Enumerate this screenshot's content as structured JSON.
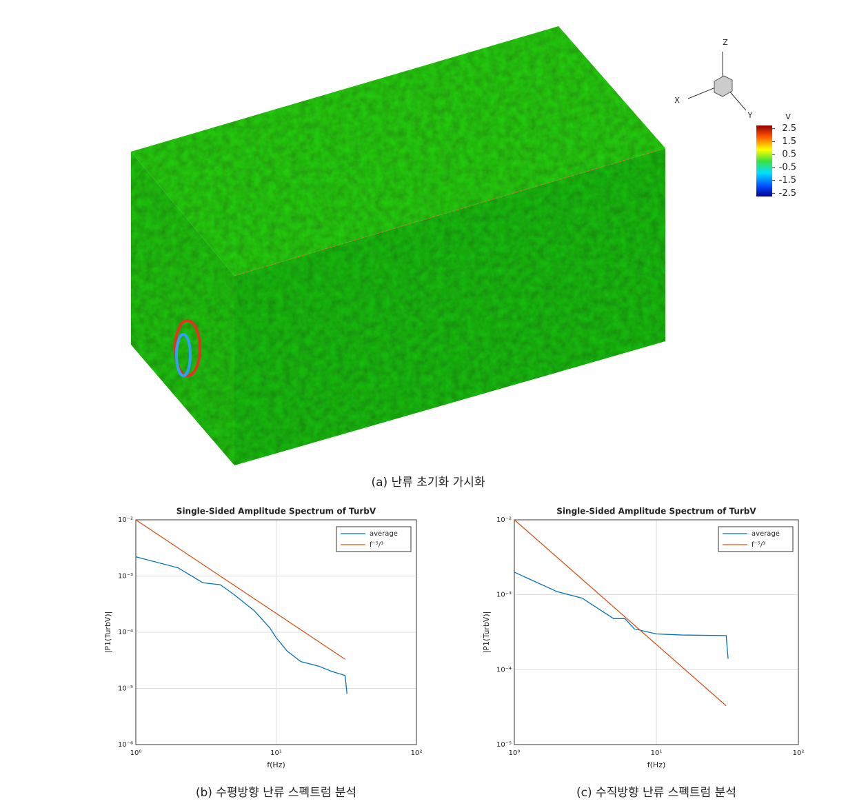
{
  "visualization": {
    "caption": "(a) 난류 초기화 가시화",
    "axis_triad": {
      "x": "X",
      "y": "Y",
      "z": "Z"
    },
    "colorbar": {
      "title": "V",
      "colormap": "jet",
      "clim": [
        -2.75,
        2.75
      ],
      "ticks": [
        2.5,
        1.5,
        0.5,
        -0.5,
        -1.5,
        -2.5
      ]
    }
  },
  "chart_data": [
    {
      "type": "line",
      "title": "Single-Sided Amplitude Spectrum of TurbV",
      "caption": "(b) 수평방향 난류 스펙트럼 분석",
      "xlabel": "f(Hz)",
      "ylabel": "|P1(TurbV)|",
      "xscale": "log",
      "yscale": "log",
      "grid": true,
      "legend": "upper right",
      "xlim": [
        1,
        100
      ],
      "ylim": [
        1e-06,
        0.01
      ],
      "xticks": [
        {
          "value": 1,
          "label": "10⁰"
        },
        {
          "value": 10,
          "label": "10¹"
        },
        {
          "value": 100,
          "label": "10²"
        }
      ],
      "yticks": [
        {
          "value": 1e-06,
          "label": "10⁻⁶"
        },
        {
          "value": 1e-05,
          "label": "10⁻⁵"
        },
        {
          "value": 0.0001,
          "label": "10⁻⁴"
        },
        {
          "value": 0.001,
          "label": "10⁻³"
        },
        {
          "value": 0.01,
          "label": "10⁻²"
        }
      ],
      "series": [
        {
          "name": "average",
          "color": "#0072bd",
          "x": [
            1,
            2,
            3,
            4,
            5,
            7,
            9,
            10,
            12,
            15,
            20,
            25,
            31,
            32
          ],
          "values": [
            0.0022,
            0.0014,
            0.00076,
            0.0007,
            0.00047,
            0.00024,
            0.00012,
            8e-05,
            4.6e-05,
            3e-05,
            2.5e-05,
            2e-05,
            1.7e-05,
            8e-06
          ]
        },
        {
          "name": "f⁻⁵/³",
          "color": "#d95319",
          "x": [
            1,
            31
          ],
          "values": [
            0.01,
            3.3e-05
          ]
        }
      ]
    },
    {
      "type": "line",
      "title": "Single-Sided Amplitude Spectrum of TurbV",
      "caption": "(c) 수직방향 난류 스펙트럼 분석",
      "xlabel": "f(Hz)",
      "ylabel": "|P1(TurbV)|",
      "xscale": "log",
      "yscale": "log",
      "grid": true,
      "legend": "upper right",
      "xlim": [
        1,
        100
      ],
      "ylim": [
        1e-05,
        0.01
      ],
      "xticks": [
        {
          "value": 1,
          "label": "10⁰"
        },
        {
          "value": 10,
          "label": "10¹"
        },
        {
          "value": 100,
          "label": "10²"
        }
      ],
      "yticks": [
        {
          "value": 1e-05,
          "label": "10⁻⁵"
        },
        {
          "value": 0.0001,
          "label": "10⁻⁴"
        },
        {
          "value": 0.001,
          "label": "10⁻³"
        },
        {
          "value": 0.01,
          "label": "10⁻²"
        }
      ],
      "series": [
        {
          "name": "average",
          "color": "#0072bd",
          "x": [
            1,
            2,
            3,
            5,
            6,
            7,
            10,
            15,
            31,
            32
          ],
          "values": [
            0.002,
            0.0011,
            0.0009,
            0.00048,
            0.00048,
            0.00035,
            0.0003,
            0.00029,
            0.000285,
            0.00014
          ]
        },
        {
          "name": "f⁻⁵/³",
          "color": "#d95319",
          "x": [
            1,
            31
          ],
          "values": [
            0.01,
            3.3e-05
          ]
        }
      ]
    }
  ]
}
